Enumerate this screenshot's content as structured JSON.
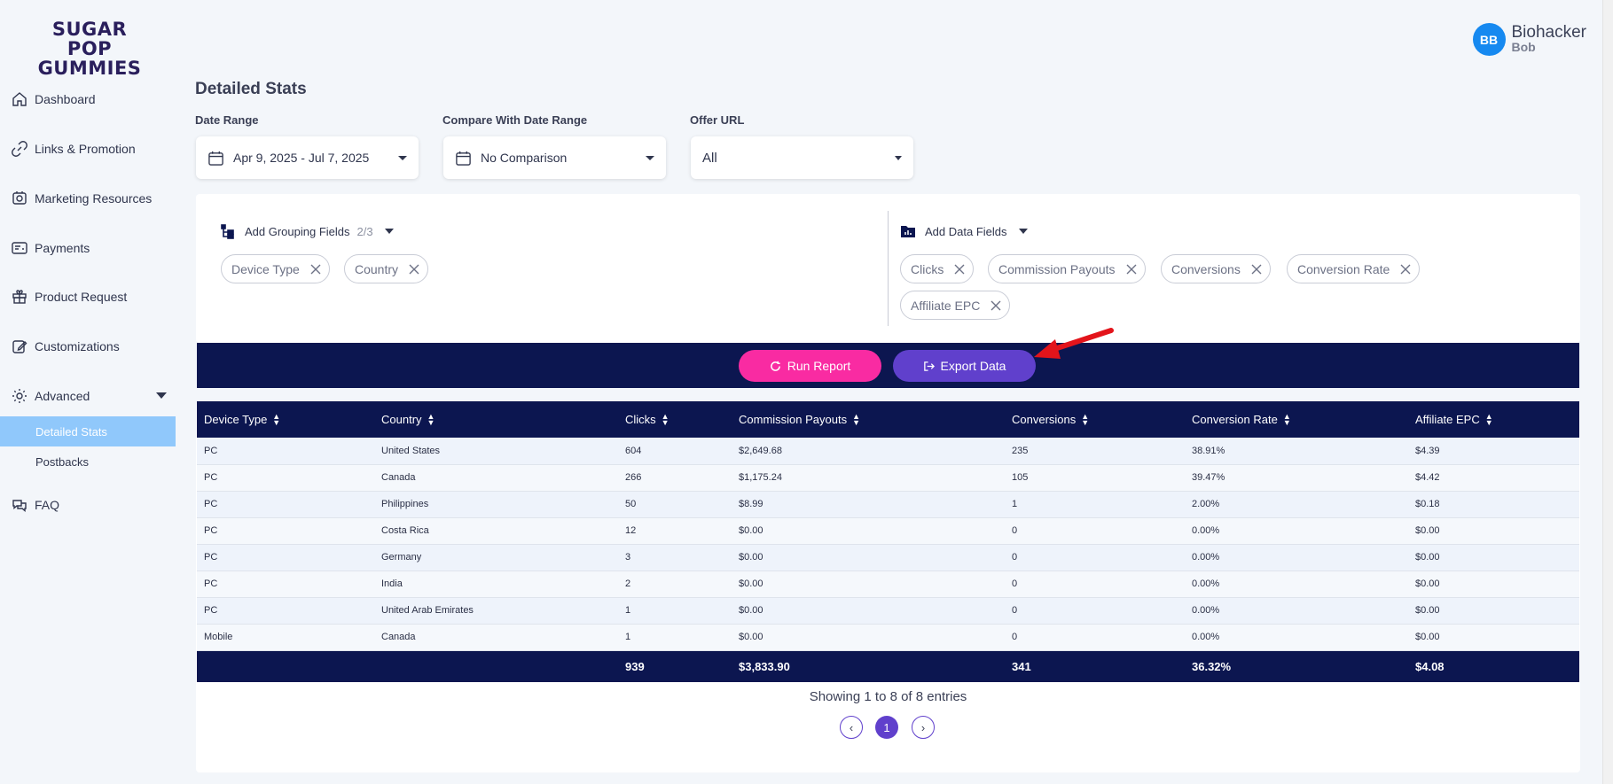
{
  "brand": {
    "line1": "SUGAR POP",
    "line2": "GUMMIES"
  },
  "user": {
    "initials": "BB",
    "first": "Biohacker",
    "last": "Bob"
  },
  "sidebar": {
    "items": [
      {
        "label": "Dashboard",
        "icon": "home-icon"
      },
      {
        "label": "Links & Promotion",
        "icon": "link-icon"
      },
      {
        "label": "Marketing Resources",
        "icon": "marketing-icon"
      },
      {
        "label": "Payments",
        "icon": "payments-icon"
      },
      {
        "label": "Product Request",
        "icon": "gift-icon"
      },
      {
        "label": "Customizations",
        "icon": "edit-icon"
      },
      {
        "label": "Advanced",
        "icon": "settings-icon"
      }
    ],
    "sub_items": [
      {
        "label": "Detailed Stats",
        "active": true
      },
      {
        "label": "Postbacks",
        "active": false
      }
    ],
    "faq": {
      "label": "FAQ",
      "icon": "chat-icon"
    }
  },
  "page": {
    "title": "Detailed Stats"
  },
  "filters": {
    "date_range": {
      "label": "Date Range",
      "value": "Apr 9, 2025 - Jul 7, 2025"
    },
    "compare": {
      "label": "Compare With Date Range",
      "value": "No Comparison"
    },
    "offer_url": {
      "label": "Offer URL",
      "value": "All"
    }
  },
  "grouping": {
    "title": "Add Grouping Fields",
    "count": "2/3",
    "chips": [
      "Device Type",
      "Country"
    ]
  },
  "data_fields": {
    "title": "Add Data Fields",
    "chips": [
      "Clicks",
      "Commission Payouts",
      "Conversions",
      "Conversion Rate",
      "Affiliate EPC"
    ]
  },
  "actions": {
    "run": "Run Report",
    "export": "Export Data"
  },
  "table": {
    "headers": [
      "Device Type",
      "Country",
      "Clicks",
      "Commission Payouts",
      "Conversions",
      "Conversion Rate",
      "Affiliate EPC"
    ],
    "rows": [
      [
        "PC",
        "United States",
        "604",
        "$2,649.68",
        "235",
        "38.91%",
        "$4.39"
      ],
      [
        "PC",
        "Canada",
        "266",
        "$1,175.24",
        "105",
        "39.47%",
        "$4.42"
      ],
      [
        "PC",
        "Philippines",
        "50",
        "$8.99",
        "1",
        "2.00%",
        "$0.18"
      ],
      [
        "PC",
        "Costa Rica",
        "12",
        "$0.00",
        "0",
        "0.00%",
        "$0.00"
      ],
      [
        "PC",
        "Germany",
        "3",
        "$0.00",
        "0",
        "0.00%",
        "$0.00"
      ],
      [
        "PC",
        "India",
        "2",
        "$0.00",
        "0",
        "0.00%",
        "$0.00"
      ],
      [
        "PC",
        "United Arab Emirates",
        "1",
        "$0.00",
        "0",
        "0.00%",
        "$0.00"
      ],
      [
        "Mobile",
        "Canada",
        "1",
        "$0.00",
        "0",
        "0.00%",
        "$0.00"
      ]
    ],
    "totals": [
      "",
      "",
      "939",
      "$3,833.90",
      "341",
      "36.32%",
      "$4.08"
    ]
  },
  "pagination": {
    "summary": "Showing 1 to 8 of 8 entries",
    "prev": "‹",
    "current": "1",
    "next": "›"
  },
  "colors": {
    "navy": "#0c1650",
    "pink": "#f92ba2",
    "purple": "#6040cc",
    "accent_blue": "#1689f0"
  }
}
